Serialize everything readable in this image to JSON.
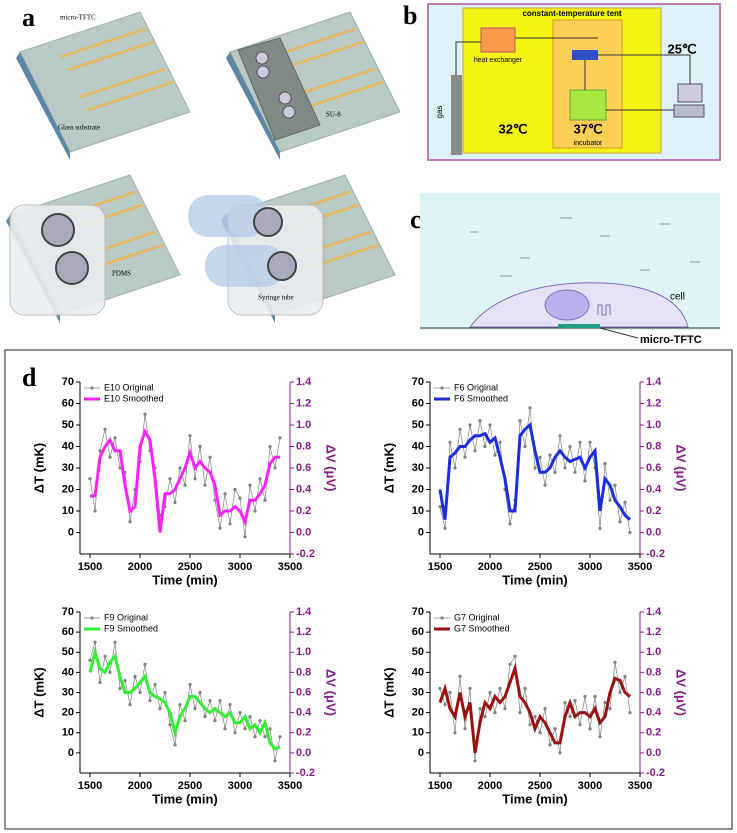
{
  "panel_labels": {
    "a": "a",
    "b": "b",
    "c": "c",
    "d": "d"
  },
  "panel_a": {
    "micro_tftc": "micro-TFTC",
    "glass": "Glass substrate",
    "su8": "SU-8",
    "pdms": "PDMS",
    "syringe": "Syringe tube"
  },
  "panel_b": {
    "tent": "constant-temperature tent",
    "heat_exchanger": "heat exchanger",
    "gas": "gas",
    "tent_temp": "32℃",
    "incubator_temp": "37℃",
    "incubator": "incubator",
    "room_temp": "25℃"
  },
  "panel_c": {
    "cell": "cell",
    "sensor": "micro-TFTC"
  },
  "chart_data": [
    {
      "type": "line",
      "xlabel": "Time (min)",
      "ylabel": "ΔT (mK)",
      "y2label": "ΔV (μV)",
      "legend": "upper left",
      "x": [
        1500,
        1550,
        1600,
        1650,
        1700,
        1750,
        1800,
        1850,
        1900,
        1950,
        2000,
        2050,
        2100,
        2150,
        2200,
        2250,
        2300,
        2350,
        2400,
        2450,
        2500,
        2550,
        2600,
        2650,
        2700,
        2750,
        2800,
        2850,
        2900,
        2950,
        3000,
        3050,
        3100,
        3150,
        3200,
        3250,
        3300,
        3350,
        3400
      ],
      "series": [
        {
          "name": "E10 Original",
          "color": "#808080",
          "values": [
            25,
            10,
            38,
            48,
            35,
            44,
            30,
            28,
            5,
            20,
            33,
            55,
            38,
            30,
            8,
            12,
            25,
            14,
            30,
            22,
            45,
            25,
            40,
            22,
            35,
            15,
            2,
            18,
            4,
            20,
            16,
            -2,
            22,
            10,
            25,
            15,
            40,
            30,
            44
          ]
        },
        {
          "name": "E10 Smoothed",
          "color": "#ff22ff",
          "values": [
            17,
            17,
            35,
            40,
            43,
            38,
            38,
            22,
            10,
            12,
            40,
            47,
            43,
            25,
            0,
            18,
            18,
            20,
            25,
            30,
            37,
            30,
            33,
            30,
            28,
            22,
            8,
            10,
            10,
            12,
            10,
            5,
            15,
            15,
            18,
            22,
            32,
            35,
            35
          ]
        }
      ],
      "xlim": [
        1400,
        3500
      ],
      "xticks": [
        1500,
        2000,
        2500,
        3000,
        3500
      ],
      "ylim": [
        -10,
        70
      ],
      "yticks": [
        0,
        10,
        20,
        30,
        40,
        50,
        60,
        70
      ],
      "y2lim": [
        -0.2,
        1.4
      ],
      "y2ticks": [
        -0.2,
        {
          "value": 0,
          "label": "0.0"
        },
        0.2,
        0.4,
        0.6,
        0.8,
        {
          "value": 1,
          "label": "1.0"
        },
        1.2,
        1.4
      ]
    },
    {
      "type": "line",
      "xlabel": "Time (min)",
      "ylabel": "ΔT (mK)",
      "y2label": "ΔV (μV)",
      "legend": "upper left",
      "x": [
        1500,
        1550,
        1600,
        1650,
        1700,
        1750,
        1800,
        1850,
        1900,
        1950,
        2000,
        2050,
        2100,
        2150,
        2200,
        2250,
        2300,
        2350,
        2400,
        2450,
        2500,
        2550,
        2600,
        2650,
        2700,
        2750,
        2800,
        2850,
        2900,
        2950,
        3000,
        3050,
        3100,
        3150,
        3200,
        3250,
        3300,
        3350,
        3400
      ],
      "series": [
        {
          "name": "F6 Original",
          "color": "#808080",
          "values": [
            12,
            2,
            42,
            30,
            48,
            35,
            50,
            38,
            52,
            40,
            50,
            36,
            42,
            20,
            4,
            15,
            52,
            40,
            58,
            30,
            35,
            22,
            36,
            28,
            45,
            30,
            40,
            28,
            42,
            24,
            42,
            30,
            2,
            32,
            15,
            22,
            5,
            14,
            0
          ]
        },
        {
          "name": "F6 Smoothed",
          "color": "#1a2ee0",
          "values": [
            20,
            6,
            35,
            37,
            40,
            40,
            43,
            45,
            45,
            46,
            42,
            44,
            35,
            25,
            10,
            10,
            45,
            48,
            50,
            38,
            28,
            28,
            30,
            35,
            38,
            35,
            33,
            34,
            35,
            30,
            35,
            38,
            10,
            25,
            22,
            15,
            12,
            8,
            6
          ]
        }
      ],
      "xlim": [
        1400,
        3500
      ],
      "xticks": [
        1500,
        2000,
        2500,
        3000,
        3500
      ],
      "ylim": [
        -10,
        70
      ],
      "yticks": [
        0,
        10,
        20,
        30,
        40,
        50,
        60,
        70
      ],
      "y2lim": [
        -0.2,
        1.4
      ],
      "y2ticks": [
        -0.2,
        {
          "value": 0,
          "label": "0.0"
        },
        0.2,
        0.4,
        0.6,
        0.8,
        {
          "value": 1,
          "label": "1.0"
        },
        1.2,
        1.4
      ]
    },
    {
      "type": "line",
      "xlabel": "Time (min)",
      "ylabel": "ΔT (mK)",
      "y2label": "ΔV (μV)",
      "legend": "upper left",
      "x": [
        1500,
        1550,
        1600,
        1650,
        1700,
        1750,
        1800,
        1850,
        1900,
        1950,
        2000,
        2050,
        2100,
        2150,
        2200,
        2250,
        2300,
        2350,
        2400,
        2450,
        2500,
        2550,
        2600,
        2650,
        2700,
        2750,
        2800,
        2850,
        2900,
        2950,
        3000,
        3050,
        3100,
        3150,
        3200,
        3250,
        3300,
        3350,
        3400
      ],
      "series": [
        {
          "name": "F9 Original",
          "color": "#808080",
          "values": [
            46,
            55,
            35,
            48,
            40,
            55,
            32,
            36,
            24,
            38,
            30,
            44,
            26,
            34,
            22,
            30,
            14,
            4,
            24,
            16,
            34,
            22,
            30,
            18,
            26,
            16,
            26,
            12,
            24,
            10,
            20,
            12,
            18,
            8,
            16,
            8,
            12,
            -4,
            8
          ]
        },
        {
          "name": "F9 Smoothed",
          "color": "#33ee33",
          "values": [
            40,
            50,
            42,
            40,
            45,
            48,
            38,
            30,
            30,
            32,
            35,
            38,
            30,
            28,
            27,
            25,
            20,
            10,
            18,
            22,
            28,
            28,
            25,
            22,
            20,
            22,
            20,
            18,
            20,
            15,
            15,
            18,
            12,
            14,
            10,
            15,
            5,
            2,
            3
          ]
        }
      ],
      "xlim": [
        1400,
        3500
      ],
      "xticks": [
        1500,
        2000,
        2500,
        3000,
        3500
      ],
      "ylim": [
        -10,
        70
      ],
      "yticks": [
        0,
        10,
        20,
        30,
        40,
        50,
        60,
        70
      ],
      "y2lim": [
        -0.2,
        1.4
      ],
      "y2ticks": [
        -0.2,
        {
          "value": 0,
          "label": "0.0"
        },
        0.2,
        0.4,
        0.6,
        0.8,
        {
          "value": 1,
          "label": "1.0"
        },
        1.2,
        1.4
      ]
    },
    {
      "type": "line",
      "xlabel": "Time (min)",
      "ylabel": "ΔT (mK)",
      "y2label": "ΔV (μV)",
      "legend": "upper left",
      "x": [
        1500,
        1550,
        1600,
        1650,
        1700,
        1750,
        1800,
        1850,
        1900,
        1950,
        2000,
        2050,
        2100,
        2150,
        2200,
        2250,
        2300,
        2350,
        2400,
        2450,
        2500,
        2550,
        2600,
        2650,
        2700,
        2750,
        2800,
        2850,
        2900,
        2950,
        3000,
        3050,
        3100,
        3150,
        3200,
        3250,
        3300,
        3350,
        3400
      ],
      "series": [
        {
          "name": "G7 Original",
          "color": "#808080",
          "values": [
            32,
            24,
            30,
            10,
            38,
            12,
            32,
            -4,
            22,
            18,
            30,
            20,
            32,
            22,
            44,
            48,
            20,
            32,
            14,
            18,
            10,
            22,
            4,
            12,
            0,
            25,
            18,
            26,
            14,
            28,
            12,
            28,
            8,
            25,
            22,
            45,
            30,
            38,
            20
          ]
        },
        {
          "name": "G7 Smoothed",
          "color": "#9a1010",
          "values": [
            25,
            32,
            22,
            18,
            30,
            18,
            25,
            0,
            15,
            25,
            22,
            28,
            25,
            28,
            35,
            42,
            28,
            25,
            20,
            12,
            18,
            15,
            10,
            5,
            5,
            18,
            25,
            18,
            20,
            20,
            18,
            22,
            15,
            18,
            30,
            37,
            36,
            30,
            28
          ]
        }
      ],
      "xlim": [
        1400,
        3500
      ],
      "xticks": [
        1500,
        2000,
        2500,
        3000,
        3500
      ],
      "ylim": [
        -10,
        70
      ],
      "yticks": [
        0,
        10,
        20,
        30,
        40,
        50,
        60,
        70
      ],
      "y2lim": [
        -0.2,
        1.4
      ],
      "y2ticks": [
        -0.2,
        {
          "value": 0,
          "label": "0.0"
        },
        0.2,
        0.4,
        0.6,
        0.8,
        {
          "value": 1,
          "label": "1.0"
        },
        1.2,
        1.4
      ]
    }
  ]
}
